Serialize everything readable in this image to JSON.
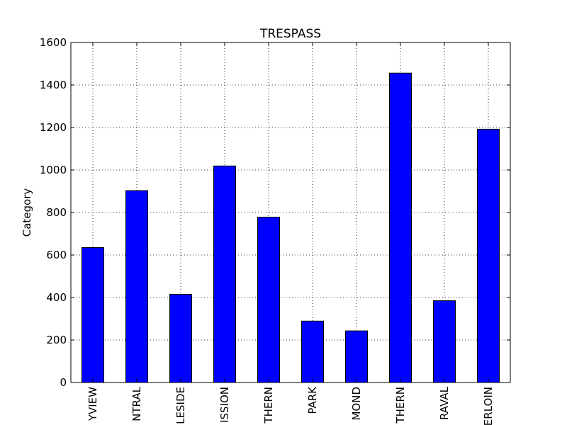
{
  "chart_data": {
    "type": "bar",
    "title": "TRESPASS",
    "xlabel": "",
    "ylabel": "Category",
    "categories": [
      "YVIEW",
      "NTRAL",
      "LESIDE",
      "ISSION",
      "THERN",
      "PARK",
      "MOND",
      "THERN",
      "RAVAL",
      "ERLOIN"
    ],
    "values": [
      635,
      903,
      415,
      1019,
      778,
      289,
      243,
      1456,
      385,
      1192
    ],
    "ylim": [
      0,
      1600
    ],
    "yticks": [
      0,
      200,
      400,
      600,
      800,
      1000,
      1200,
      1400,
      1600
    ],
    "grid": true,
    "bar_color": "#0000ff",
    "edge_color": "#000000"
  }
}
